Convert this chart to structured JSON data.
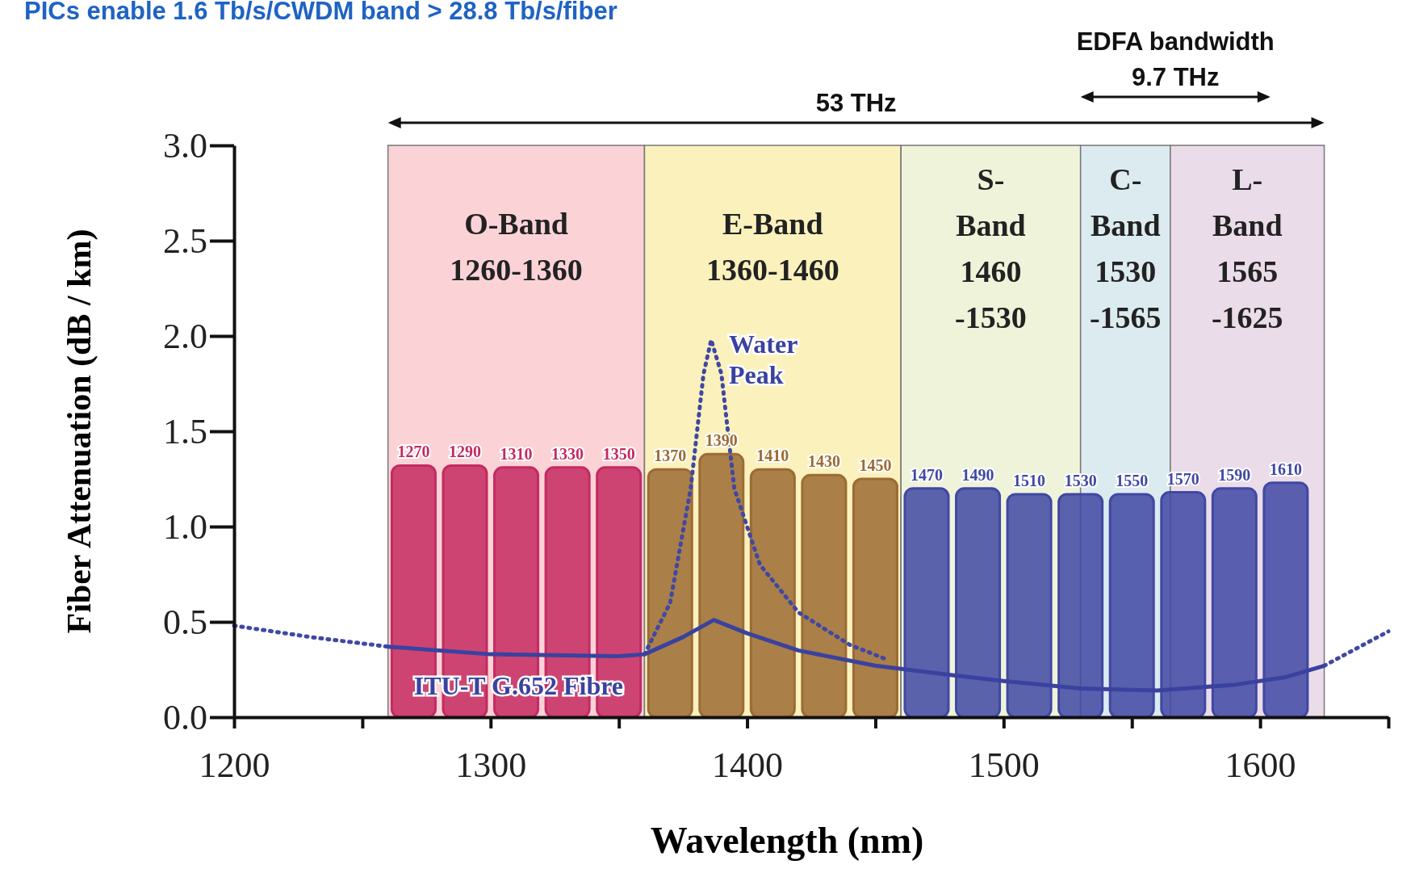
{
  "chart_data": {
    "type": "line",
    "title": "PICs enable 1.6 Tb/s/CWDM band > 28.8 Tb/s/fiber",
    "xlabel": "Wavelength (nm)",
    "ylabel": "Fiber Attenuation (dB / km)",
    "xlim": [
      1200,
      1650
    ],
    "ylim": [
      0,
      3
    ],
    "xticks": [
      1200,
      {
        "value": 1250,
        "label": null
      },
      1300,
      {
        "value": 1350,
        "label": null
      },
      1400,
      {
        "value": 1450,
        "label": null
      },
      1500,
      {
        "value": 1550,
        "label": null
      },
      1600,
      {
        "value": 1650,
        "label": null
      }
    ],
    "yticks": [
      {
        "value": 0,
        "label": "0.0"
      },
      0.5,
      {
        "value": 1,
        "label": "1.0"
      },
      1.5,
      {
        "value": 2,
        "label": "2.0"
      },
      2.5,
      {
        "value": 3,
        "label": "3.0"
      }
    ],
    "grid": false,
    "bands": [
      {
        "axis": "x",
        "from": 1260,
        "to": 1360,
        "label": "O-Band\n1260-1360",
        "color": "#fbd3d6"
      },
      {
        "axis": "x",
        "from": 1360,
        "to": 1460,
        "label": "E-Band\n1360-1460",
        "color": "#fbf1bd"
      },
      {
        "axis": "x",
        "from": 1460,
        "to": 1530,
        "label": "S-\nBand\n1460\n-1530",
        "color": "#eff3da"
      },
      {
        "axis": "x",
        "from": 1530,
        "to": 1565,
        "label": "C-\nBand\n1530\n-1565",
        "color": "#dcebef"
      },
      {
        "axis": "x",
        "from": 1565,
        "to": 1625,
        "label": "L-\nBand\n1565\n-1625",
        "color": "#ebdcea"
      }
    ],
    "series": [
      {
        "type": "bar",
        "x": [
          1270,
          1290,
          1310,
          1330,
          1350,
          1370,
          1390,
          1410,
          1430,
          1450,
          1470,
          1490,
          1510,
          1530,
          1550,
          1570,
          1590,
          1610
        ],
        "values": [
          1.32,
          1.32,
          1.31,
          1.31,
          1.31,
          1.3,
          1.38,
          1.3,
          1.27,
          1.25,
          1.2,
          1.2,
          1.17,
          1.17,
          1.17,
          1.18,
          1.2,
          1.23
        ],
        "colors": [
          "#c42a62",
          "#c42a62",
          "#c42a62",
          "#c42a62",
          "#c42a62",
          "#9c6b34",
          "#9c6b34",
          "#9c6b34",
          "#9c6b34",
          "#9c6b34",
          "#4048a3",
          "#4048a3",
          "#4048a3",
          "#4048a3",
          "#4048a3",
          "#4048a3",
          "#4048a3",
          "#4048a3"
        ]
      },
      {
        "type": "line",
        "line_style": "dotted",
        "color": "#4048a3",
        "x": [
          1360,
          1370,
          1378,
          1383,
          1386,
          1390,
          1395,
          1405,
          1420,
          1440,
          1455
        ],
        "values": [
          0.33,
          0.6,
          1.2,
          1.8,
          1.98,
          1.8,
          1.2,
          0.8,
          0.55,
          0.38,
          0.3
        ]
      },
      {
        "type": "line",
        "line_style": "dotted",
        "color": "#4048a3",
        "x": [
          1200,
          1230,
          1260
        ],
        "values": [
          0.48,
          0.42,
          0.37
        ]
      },
      {
        "type": "line",
        "line_style": "dotted",
        "color": "#4048a3",
        "x": [
          1625,
          1650
        ],
        "values": [
          0.27,
          0.45
        ]
      },
      {
        "line_style": "solid",
        "color": "#3a42a0",
        "x": [
          1260,
          1300,
          1350,
          1360,
          1375,
          1387,
          1400,
          1420,
          1450,
          1480,
          1500,
          1530,
          1560,
          1590,
          1610,
          1625
        ],
        "values": [
          0.37,
          0.33,
          0.32,
          0.33,
          0.42,
          0.51,
          0.44,
          0.35,
          0.27,
          0.22,
          0.19,
          0.15,
          0.14,
          0.17,
          0.21,
          0.27
        ]
      }
    ],
    "annotations": [
      "53 THz",
      "EDFA bandwidth\n9.7 THz",
      {
        "text": "Water\nPeak",
        "x": 1386,
        "y": 1.98
      },
      {
        "text": "ITU-T G.652 Fibre",
        "x": 1300,
        "y": 0.33
      },
      {
        "text": "1270",
        "x": 1270,
        "y": 1.32
      },
      {
        "text": "1290",
        "x": 1290,
        "y": 1.32
      },
      {
        "text": "1310",
        "x": 1310,
        "y": 1.31
      },
      {
        "text": "1330",
        "x": 1330,
        "y": 1.31
      },
      {
        "text": "1350",
        "x": 1350,
        "y": 1.31
      },
      {
        "text": "1370",
        "x": 1370,
        "y": 1.3
      },
      {
        "text": "1390",
        "x": 1390,
        "y": 1.38
      },
      {
        "text": "1410",
        "x": 1410,
        "y": 1.3
      },
      {
        "text": "1430",
        "x": 1430,
        "y": 1.27
      },
      {
        "text": "1450",
        "x": 1450,
        "y": 1.25
      },
      {
        "text": "1470",
        "x": 1470,
        "y": 1.2
      },
      {
        "text": "1490",
        "x": 1490,
        "y": 1.2
      },
      {
        "text": "1510",
        "x": 1510,
        "y": 1.17
      },
      {
        "text": "1530",
        "x": 1530,
        "y": 1.17
      },
      {
        "text": "1550",
        "x": 1550,
        "y": 1.17
      },
      {
        "text": "1570",
        "x": 1570,
        "y": 1.18
      },
      {
        "text": "1590",
        "x": 1590,
        "y": 1.2
      },
      {
        "text": "1610",
        "x": 1610,
        "y": 1.23
      }
    ]
  }
}
